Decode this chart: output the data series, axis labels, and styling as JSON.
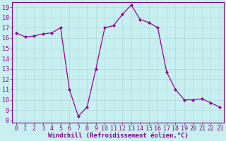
{
  "x": [
    0,
    1,
    2,
    3,
    4,
    5,
    6,
    7,
    8,
    9,
    10,
    11,
    12,
    13,
    14,
    15,
    16,
    17,
    18,
    19,
    20,
    21,
    22,
    23
  ],
  "y": [
    16.5,
    16.1,
    16.2,
    16.4,
    16.5,
    17.0,
    11.0,
    8.4,
    9.3,
    13.0,
    17.0,
    17.2,
    18.3,
    19.2,
    17.8,
    17.5,
    17.0,
    12.7,
    11.0,
    10.0,
    10.0,
    10.1,
    9.7,
    9.3
  ],
  "line_color": "#990099",
  "marker": "D",
  "markersize": 2.0,
  "linewidth": 0.9,
  "bg_color": "#c8f0f0",
  "grid_color": "#b0dada",
  "xlabel": "Windchill (Refroidissement éolien,°C)",
  "xlabel_fontsize": 6.5,
  "xlabel_color": "#880088",
  "yticks": [
    8,
    9,
    10,
    11,
    12,
    13,
    14,
    15,
    16,
    17,
    18,
    19
  ],
  "xticks": [
    0,
    1,
    2,
    3,
    4,
    5,
    6,
    7,
    8,
    9,
    10,
    11,
    12,
    13,
    14,
    15,
    16,
    17,
    18,
    19,
    20,
    21,
    22,
    23
  ],
  "ylim": [
    7.8,
    19.5
  ],
  "xlim": [
    -0.5,
    23.5
  ],
  "tick_fontsize": 6.0,
  "tick_color": "#880088",
  "spine_color": "#880088"
}
